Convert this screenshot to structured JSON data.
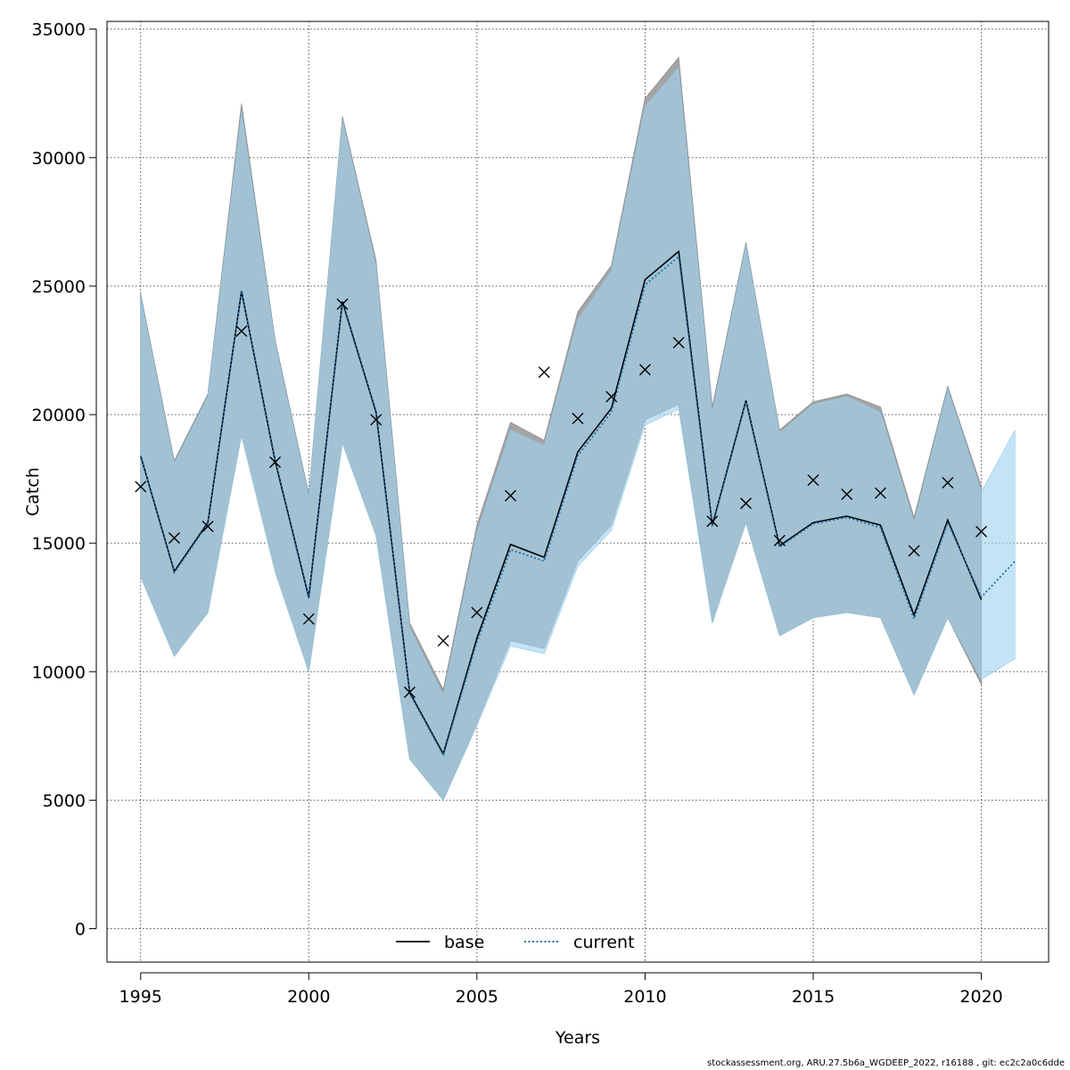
{
  "chart_data": {
    "type": "line",
    "xlabel": "Years",
    "ylabel": "Catch",
    "xlim": [
      1994,
      2022
    ],
    "ylim": [
      -1300,
      35300
    ],
    "x_ticks": [
      1995,
      2000,
      2005,
      2010,
      2015,
      2020
    ],
    "y_ticks": [
      0,
      5000,
      10000,
      15000,
      20000,
      25000,
      30000,
      35000
    ],
    "grid": true,
    "legend_position": "bottom-center",
    "legend": [
      {
        "name": "base",
        "style": "solid",
        "color": "#000000"
      },
      {
        "name": "current",
        "style": "dotted",
        "color": "#1f6fa8"
      }
    ],
    "colors": {
      "base_band": "#9b9b9b",
      "current_band": "#9fd3f0",
      "overlap_band": "#a3c3d5",
      "grid": "#555555",
      "observed_marker": "#000000"
    },
    "observed": {
      "x": [
        1995,
        1996,
        1997,
        1998,
        1999,
        2000,
        2001,
        2002,
        2003,
        2004,
        2005,
        2006,
        2007,
        2008,
        2009,
        2010,
        2011,
        2012,
        2013,
        2014,
        2015,
        2016,
        2017,
        2018,
        2019,
        2020
      ],
      "y": [
        17200,
        15200,
        15650,
        23250,
        18150,
        12050,
        24300,
        19800,
        9200,
        11200,
        12300,
        16850,
        21650,
        19850,
        20700,
        21750,
        22800,
        15850,
        16550,
        15100,
        17450,
        16900,
        16950,
        14700,
        17350,
        15450
      ]
    },
    "series": [
      {
        "name": "base",
        "x": [
          1995,
          1996,
          1997,
          1998,
          1999,
          2000,
          2001,
          2002,
          2003,
          2004,
          2005,
          2006,
          2007,
          2008,
          2009,
          2010,
          2011,
          2012,
          2013,
          2014,
          2015,
          2016,
          2017,
          2018,
          2019,
          2020
        ],
        "values": [
          18400,
          13900,
          15800,
          24800,
          18200,
          12900,
          24400,
          20100,
          9200,
          6800,
          11300,
          14950,
          14450,
          18550,
          20250,
          25250,
          26350,
          15700,
          20550,
          14900,
          15800,
          16050,
          15700,
          12200,
          15900,
          12800
        ],
        "lower": [
          13700,
          10600,
          12300,
          19200,
          13900,
          10000,
          18900,
          15300,
          6600,
          5000,
          8000,
          11200,
          10900,
          14300,
          15700,
          19800,
          20400,
          11900,
          15800,
          11400,
          12100,
          12300,
          12100,
          9100,
          12100,
          9500
        ],
        "upper": [
          24700,
          18200,
          20800,
          32100,
          22900,
          16900,
          31600,
          26000,
          11900,
          9300,
          15700,
          19700,
          19000,
          24000,
          25800,
          32300,
          33900,
          20300,
          26700,
          19400,
          20500,
          20800,
          20300,
          16000,
          21100,
          17200
        ]
      },
      {
        "name": "current",
        "x": [
          1995,
          1996,
          1997,
          1998,
          1999,
          2000,
          2001,
          2002,
          2003,
          2004,
          2005,
          2006,
          2007,
          2008,
          2009,
          2010,
          2011,
          2012,
          2013,
          2014,
          2015,
          2016,
          2017,
          2018,
          2019,
          2020,
          2021
        ],
        "values": [
          18400,
          13850,
          15750,
          24800,
          18150,
          12850,
          24350,
          20050,
          9150,
          6750,
          11150,
          14750,
          14300,
          18400,
          20100,
          25050,
          26150,
          15650,
          20500,
          14850,
          15750,
          16000,
          15600,
          12050,
          15800,
          12900,
          14300
        ],
        "lower": [
          13700,
          10600,
          12300,
          19200,
          13900,
          10000,
          18900,
          15300,
          6600,
          5000,
          7900,
          11000,
          10700,
          14100,
          15500,
          19600,
          20200,
          11900,
          15800,
          11400,
          12100,
          12300,
          12100,
          9100,
          12100,
          9700,
          10500
        ],
        "upper": [
          24600,
          18100,
          20700,
          31800,
          22800,
          16800,
          31500,
          25800,
          11700,
          9100,
          15400,
          19400,
          18800,
          23700,
          25600,
          32000,
          33500,
          20100,
          26600,
          19300,
          20400,
          20700,
          20100,
          15800,
          21000,
          17000,
          19400
        ]
      }
    ]
  },
  "footer": {
    "note": "stockassessment.org, ARU.27.5b6a_WGDEEP_2022, r16188 , git: ec2c2a0c6dde"
  }
}
